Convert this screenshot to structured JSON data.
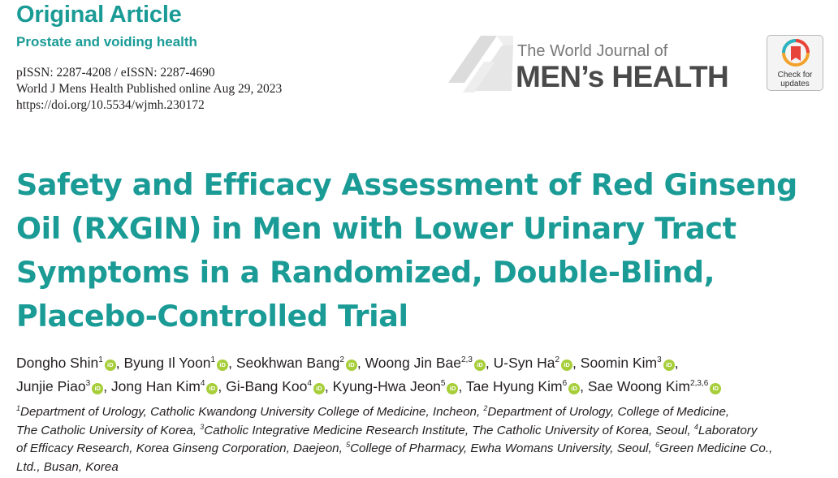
{
  "header": {
    "article_type": "Original Article",
    "section": "Prostate and voiding health",
    "issn": "pISSN: 2287-4208 / eISSN: 2287-4690",
    "publication": "World J Mens Health Published online Aug 29, 2023",
    "doi": "https://doi.org/10.5534/wjmh.230172"
  },
  "journal_logo": {
    "line1": "The World Journal of",
    "line2": "MEN’s HEALTH"
  },
  "check_updates": {
    "line1": "Check for",
    "line2": "updates"
  },
  "title_lines": [
    "Safety and Efficacy Assessment of Red Ginseng",
    "Oil (RXGIN) in Men with Lower Urinary Tract",
    "Symptoms in a Randomized, Double-Blind,",
    "Placebo-Controlled Trial"
  ],
  "orcid_label": "iD",
  "authors": [
    {
      "name": "Dongho Shin",
      "aff": "1"
    },
    {
      "name": "Byung Il Yoon",
      "aff": "1"
    },
    {
      "name": "Seokhwan Bang",
      "aff": "2"
    },
    {
      "name": "Woong Jin Bae",
      "aff": "2,3"
    },
    {
      "name": "U-Syn Ha",
      "aff": "2"
    },
    {
      "name": "Soomin Kim",
      "aff": "3"
    },
    {
      "name": "Junjie Piao",
      "aff": "3"
    },
    {
      "name": "Jong Han Kim",
      "aff": "4"
    },
    {
      "name": "Gi-Bang Koo",
      "aff": "4"
    },
    {
      "name": "Kyung-Hwa Jeon",
      "aff": "5"
    },
    {
      "name": "Tae Hyung Kim",
      "aff": "6"
    },
    {
      "name": "Sae Woong Kim",
      "aff": "2,3,6"
    }
  ],
  "affiliation_lines": [
    [
      {
        "sup": "1"
      },
      {
        "text": "Department of Urology, Catholic Kwandong University College of Medicine, Incheon, "
      },
      {
        "sup": "2"
      },
      {
        "text": "Department of Urology, College of Medicine,"
      }
    ],
    [
      {
        "text": "The Catholic University of Korea, "
      },
      {
        "sup": "3"
      },
      {
        "text": "Catholic Integrative Medicine Research Institute, The Catholic University of Korea, Seoul, "
      },
      {
        "sup": "4"
      },
      {
        "text": "Laboratory"
      }
    ],
    [
      {
        "text": "of Efficacy Research, Korea Ginseng Corporation, Daejeon, "
      },
      {
        "sup": "5"
      },
      {
        "text": "College of Pharmacy, Ewha Womans University, Seoul, "
      },
      {
        "sup": "6"
      },
      {
        "text": "Green Medicine Co.,"
      }
    ],
    [
      {
        "text": "Ltd., Busan, Korea"
      }
    ]
  ],
  "colors": {
    "accent": "#1a9b96",
    "orcid": "#a6ce39",
    "logo_text": "#4a4a4a"
  }
}
